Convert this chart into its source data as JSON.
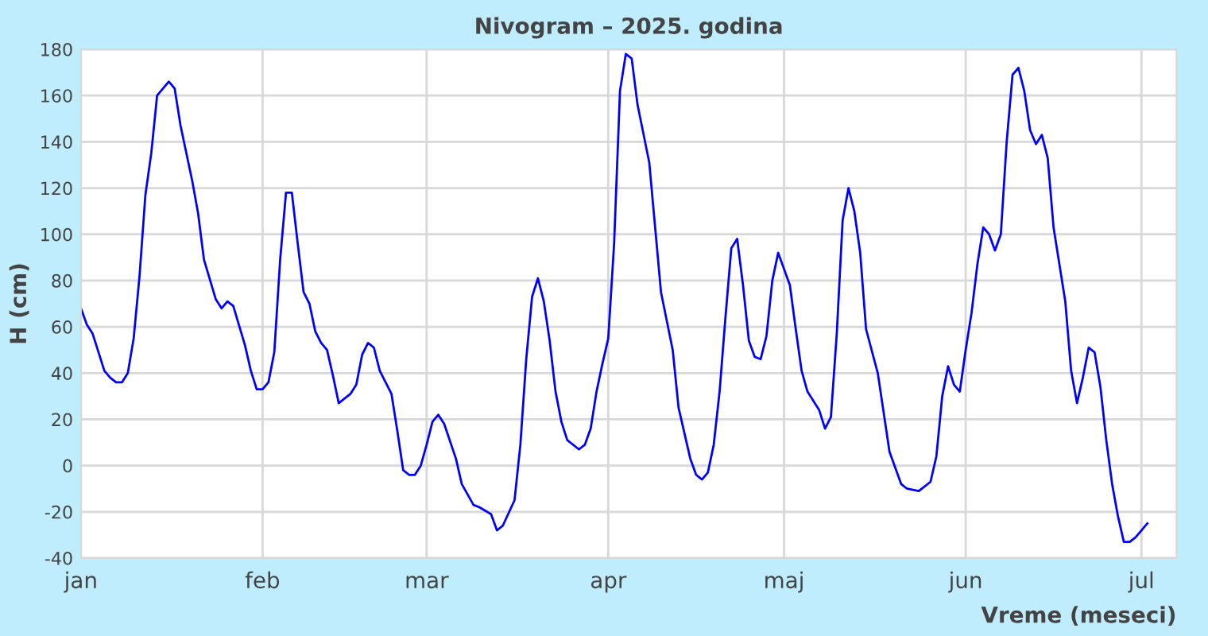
{
  "chart_data": {
    "type": "line",
    "title": "Nivogram – 2025. godina",
    "xlabel": "Vreme (meseci)",
    "ylabel": "H (cm)",
    "x": [
      "2025-01-01",
      "2025-01-02",
      "2025-01-03",
      "2025-01-05",
      "2025-01-06",
      "2025-01-07",
      "2025-01-08",
      "2025-01-09",
      "2025-01-10",
      "2025-01-11",
      "2025-01-12",
      "2025-01-13",
      "2025-01-14",
      "2025-01-16",
      "2025-01-17",
      "2025-01-18",
      "2025-01-20",
      "2025-01-21",
      "2025-01-22",
      "2025-01-24",
      "2025-01-25",
      "2025-01-26",
      "2025-01-27",
      "2025-01-29",
      "2025-01-30",
      "2025-01-31",
      "2025-02-01",
      "2025-02-02",
      "2025-02-03",
      "2025-02-04",
      "2025-02-05",
      "2025-02-06",
      "2025-02-07",
      "2025-02-08",
      "2025-02-09",
      "2025-02-10",
      "2025-02-11",
      "2025-02-12",
      "2025-02-13",
      "2025-02-14",
      "2025-02-16",
      "2025-02-17",
      "2025-02-18",
      "2025-02-19",
      "2025-02-20",
      "2025-02-21",
      "2025-02-23",
      "2025-02-24",
      "2025-02-25",
      "2025-02-26",
      "2025-02-27",
      "2025-02-28",
      "2025-03-01",
      "2025-03-02",
      "2025-03-03",
      "2025-03-04",
      "2025-03-06",
      "2025-03-07",
      "2025-03-09",
      "2025-03-10",
      "2025-03-12",
      "2025-03-13",
      "2025-03-14",
      "2025-03-16",
      "2025-03-17",
      "2025-03-18",
      "2025-03-19",
      "2025-03-20",
      "2025-03-21",
      "2025-03-22",
      "2025-03-23",
      "2025-03-24",
      "2025-03-25",
      "2025-03-27",
      "2025-03-28",
      "2025-03-29",
      "2025-03-30",
      "2025-03-31",
      "2025-04-01",
      "2025-04-02",
      "2025-04-03",
      "2025-04-04",
      "2025-04-05",
      "2025-04-06",
      "2025-04-08",
      "2025-04-09",
      "2025-04-10",
      "2025-04-12",
      "2025-04-13",
      "2025-04-15",
      "2025-04-16",
      "2025-04-17",
      "2025-04-18",
      "2025-04-19",
      "2025-04-20",
      "2025-04-21",
      "2025-04-22",
      "2025-04-23",
      "2025-04-24",
      "2025-04-25",
      "2025-04-26",
      "2025-04-27",
      "2025-04-28",
      "2025-04-29",
      "2025-04-30",
      "2025-05-01",
      "2025-05-02",
      "2025-05-03",
      "2025-05-04",
      "2025-05-05",
      "2025-05-07",
      "2025-05-08",
      "2025-05-09",
      "2025-05-10",
      "2025-05-11",
      "2025-05-12",
      "2025-05-13",
      "2025-05-14",
      "2025-05-15",
      "2025-05-17",
      "2025-05-18",
      "2025-05-19",
      "2025-05-21",
      "2025-05-22",
      "2025-05-24",
      "2025-05-25",
      "2025-05-26",
      "2025-05-27",
      "2025-05-28",
      "2025-05-29",
      "2025-05-30",
      "2025-05-31",
      "2025-06-01",
      "2025-06-02",
      "2025-06-03",
      "2025-06-04",
      "2025-06-05",
      "2025-06-06",
      "2025-06-07",
      "2025-06-08",
      "2025-06-09",
      "2025-06-10",
      "2025-06-11",
      "2025-06-12",
      "2025-06-13",
      "2025-06-14",
      "2025-06-15",
      "2025-06-16",
      "2025-06-18",
      "2025-06-19",
      "2025-06-20",
      "2025-06-21",
      "2025-06-22",
      "2025-06-23",
      "2025-06-24",
      "2025-06-25",
      "2025-06-26",
      "2025-06-27",
      "2025-06-28",
      "2025-06-29",
      "2025-06-30",
      "2025-07-02"
    ],
    "series": [
      {
        "color": "#0000ff",
        "values": [
          68,
          61,
          57,
          41,
          38,
          36,
          36,
          40,
          55,
          82,
          117,
          135,
          160,
          166,
          163,
          147,
          123,
          109,
          89,
          72,
          68,
          71,
          69,
          52,
          41,
          33,
          33,
          36,
          49,
          89,
          118,
          118,
          96,
          75,
          70,
          58,
          53,
          50,
          39,
          27,
          31,
          35,
          48,
          53,
          51,
          41,
          31,
          15,
          -2,
          -4,
          -4,
          0,
          9,
          19,
          22,
          18,
          3,
          -8,
          -17,
          -18,
          -21,
          -28,
          -26,
          -15,
          9,
          46,
          73,
          81,
          71,
          54,
          32,
          19,
          11,
          7,
          9,
          16,
          32,
          44,
          55,
          96,
          162,
          178,
          176,
          156,
          131,
          103,
          75,
          50,
          25,
          3,
          -4,
          -6,
          -3,
          9,
          32,
          64,
          94,
          98,
          78,
          54,
          47,
          46,
          56,
          80,
          92,
          85,
          78,
          59,
          41,
          32,
          24,
          16,
          21,
          57,
          106,
          120,
          110,
          92,
          59,
          40,
          23,
          6,
          -8,
          -10,
          -11,
          -9,
          -7,
          4,
          30,
          43,
          35,
          32,
          50,
          66,
          87,
          103,
          100,
          93,
          100,
          140,
          169,
          172,
          162,
          145,
          139,
          143,
          133,
          103,
          71,
          41,
          27,
          38,
          51,
          49,
          34,
          11,
          -8,
          -22,
          -33,
          -33,
          -31,
          -25
        ]
      }
    ],
    "xlim": [
      "2025-01-01",
      "2025-07-07"
    ],
    "xticks": [
      {
        "value": "2025-01-01",
        "label": "jan"
      },
      {
        "value": "2025-02-01",
        "label": "feb"
      },
      {
        "value": "2025-03-01",
        "label": "mar"
      },
      {
        "value": "2025-04-01",
        "label": "apr"
      },
      {
        "value": "2025-05-01",
        "label": "maj"
      },
      {
        "value": "2025-06-01",
        "label": "jun"
      },
      {
        "value": "2025-07-01",
        "label": "jul"
      }
    ],
    "ylim": [
      -40,
      180
    ],
    "yticks": [
      -40,
      -20,
      0,
      20,
      40,
      60,
      80,
      100,
      120,
      140,
      160,
      180
    ],
    "grid": true,
    "marker": "none",
    "line_style": "solid"
  }
}
